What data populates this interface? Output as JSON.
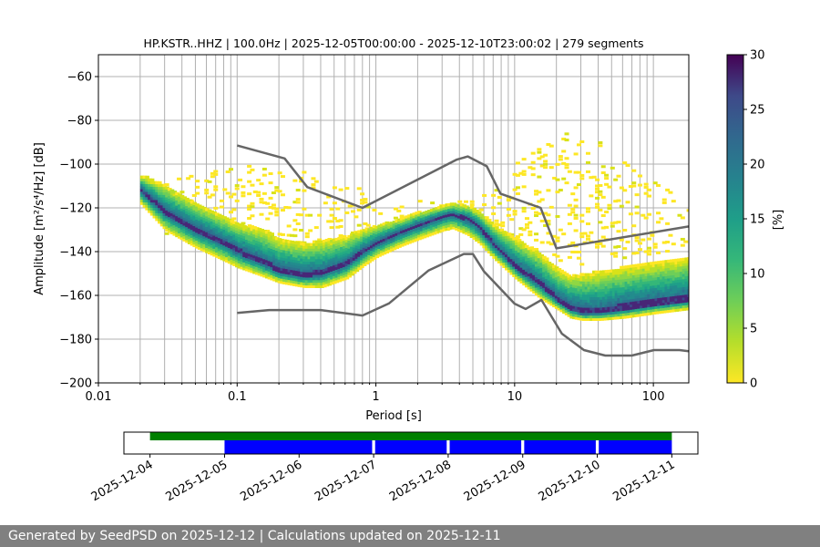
{
  "chart_data": [
    {
      "type": "heatmap",
      "title": "HP.KSTR..HHZ | 100.0Hz | 2025-12-05T00:00:00 - 2025-12-10T23:00:02 | 279 segments",
      "xlabel": "Period [s]",
      "ylabel": "Amplitude [m²/s⁴/Hz] [dB]",
      "x_scale": "log",
      "xlim": [
        0.01,
        180
      ],
      "ylim": [
        -200,
        -50
      ],
      "grid": true,
      "x_ticks": [
        0.01,
        0.1,
        1,
        10,
        100
      ],
      "x_tick_labels": [
        "0.01",
        "0.1",
        "1",
        "10",
        "100"
      ],
      "y_ticks": [
        -200,
        -180,
        -160,
        -140,
        -120,
        -100,
        -80,
        -60
      ],
      "y_tick_labels": [
        "−200",
        "−180",
        "−160",
        "−140",
        "−120",
        "−100",
        "−80",
        "−60"
      ],
      "colorbar": {
        "label": "[%]",
        "range": [
          0,
          30
        ],
        "ticks": [
          0,
          5,
          10,
          15,
          20,
          25,
          30
        ],
        "colormap": "viridis_r"
      },
      "mode_curve": {
        "x": [
          0.02,
          0.03,
          0.05,
          0.08,
          0.1,
          0.15,
          0.2,
          0.3,
          0.4,
          0.6,
          0.8,
          1.0,
          1.5,
          2.0,
          3.0,
          3.5,
          4.5,
          5.5,
          7,
          10,
          15,
          20,
          25,
          30,
          40,
          60,
          100,
          180
        ],
        "y": [
          -112,
          -122,
          -130,
          -136,
          -140,
          -145,
          -149,
          -151,
          -150,
          -146,
          -140,
          -136,
          -131,
          -128,
          -124,
          -123,
          -125,
          -129,
          -137,
          -147,
          -155,
          -162,
          -166,
          -168,
          -168,
          -166,
          -164,
          -162
        ]
      },
      "density_band": {
        "x": [
          0.02,
          0.03,
          0.05,
          0.08,
          0.1,
          0.15,
          0.2,
          0.3,
          0.4,
          0.6,
          0.8,
          1.0,
          1.5,
          2.0,
          3.0,
          3.5,
          4.5,
          5.5,
          7,
          10,
          15,
          20,
          25,
          30,
          40,
          60,
          100,
          180
        ],
        "upper": [
          -105,
          -110,
          -118,
          -124,
          -127,
          -130,
          -134,
          -136,
          -135,
          -133,
          -130,
          -128,
          -125,
          -122,
          -119,
          -118,
          -119,
          -122,
          -128,
          -134,
          -141,
          -148,
          -151,
          -150,
          -149,
          -147,
          -145,
          -143
        ],
        "lower": [
          -118,
          -130,
          -138,
          -144,
          -147,
          -151,
          -154,
          -156,
          -156,
          -152,
          -146,
          -142,
          -137,
          -134,
          -130,
          -129,
          -132,
          -136,
          -143,
          -152,
          -161,
          -166,
          -170,
          -171,
          -171,
          -170,
          -168,
          -166
        ]
      },
      "scatter_region": {
        "x": [
          0.03,
          0.05,
          0.08,
          0.1,
          0.15,
          0.2,
          0.3,
          0.5,
          0.8,
          1,
          2,
          3,
          5,
          7,
          10,
          15,
          20,
          25,
          30,
          40,
          60,
          100,
          150,
          180
        ],
        "upper": [
          -108,
          -104,
          -102,
          -101,
          -101,
          -102,
          -104,
          -108,
          -112,
          -114,
          -116,
          -118,
          -116,
          -110,
          -98,
          -92,
          -88,
          -85,
          -86,
          -90,
          -98,
          -108,
          -116,
          -120
        ],
        "lower": [
          -132,
          -136,
          -140,
          -141,
          -143,
          -145,
          -146,
          -146,
          -143,
          -140,
          -134,
          -130,
          -130,
          -133,
          -136,
          -140,
          -144,
          -146,
          -146,
          -145,
          -143,
          -141,
          -139,
          -138
        ]
      },
      "noise_models": [
        {
          "x": [
            0.1,
            0.22,
            0.32,
            0.8,
            3.8,
            4.6,
            6.3,
            7.9,
            15.4,
            20,
            180
          ],
          "y": [
            -91.5,
            -97.4,
            -110.5,
            -120,
            -98,
            -96.5,
            -101,
            -113.5,
            -120,
            -138.5,
            -128.5
          ]
        },
        {
          "x": [
            0.1,
            0.17,
            0.4,
            0.8,
            1.24,
            2.4,
            4.3,
            5,
            6,
            10,
            12,
            15.6,
            21.9,
            31.6,
            45,
            70,
            101,
            154,
            180
          ],
          "y": [
            -168,
            -166.7,
            -166.7,
            -169.2,
            -163.7,
            -148.6,
            -141.1,
            -141.1,
            -149,
            -163.8,
            -166.2,
            -162.1,
            -177.5,
            -185,
            -187.5,
            -187.5,
            -185,
            -185,
            -185.5
          ]
        }
      ]
    },
    {
      "type": "timeline",
      "x_tick_labels": [
        "2025-12-04",
        "2025-12-05",
        "2025-12-06",
        "2025-12-07",
        "2025-12-08",
        "2025-12-09",
        "2025-12-10",
        "2025-12-11"
      ],
      "xlim_days": [
        -0.35,
        7.35
      ],
      "available_data": {
        "start_day": 0,
        "end_day": 7,
        "color": "#008000"
      },
      "used_segments": [
        {
          "start_day": 1,
          "end_day": 2.98
        },
        {
          "start_day": 3.02,
          "end_day": 3.98
        },
        {
          "start_day": 4.02,
          "end_day": 4.98
        },
        {
          "start_day": 5.02,
          "end_day": 5.98
        },
        {
          "start_day": 6.02,
          "end_day": 7
        }
      ],
      "used_color": "#0000ff"
    }
  ],
  "footer": {
    "text": "Generated by SeedPSD on 2025-12-12 | Calculations updated on 2025-12-11"
  }
}
